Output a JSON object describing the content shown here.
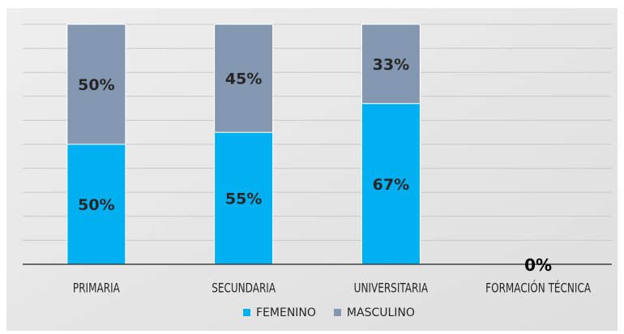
{
  "chart_data": {
    "type": "bar",
    "stacked": true,
    "percent_stacked": true,
    "categories": [
      "PRIMARIA",
      "SECUNDARIA",
      "UNIVERSITARIA",
      "FORMACIÓN TÉCNICA"
    ],
    "series": [
      {
        "name": "FEMENINO",
        "values": [
          50,
          55,
          67,
          0
        ],
        "labels": [
          "50%",
          "55%",
          "67%",
          "0%"
        ],
        "color": "#00B0F0"
      },
      {
        "name": "MASCULINO",
        "values": [
          50,
          45,
          33,
          0
        ],
        "labels": [
          "50%",
          "45%",
          "33%",
          ""
        ],
        "color": "#8497B0"
      }
    ],
    "ylim": [
      0,
      100
    ],
    "grid": true,
    "legend_position": "bottom",
    "background": "#E7E7E7"
  }
}
